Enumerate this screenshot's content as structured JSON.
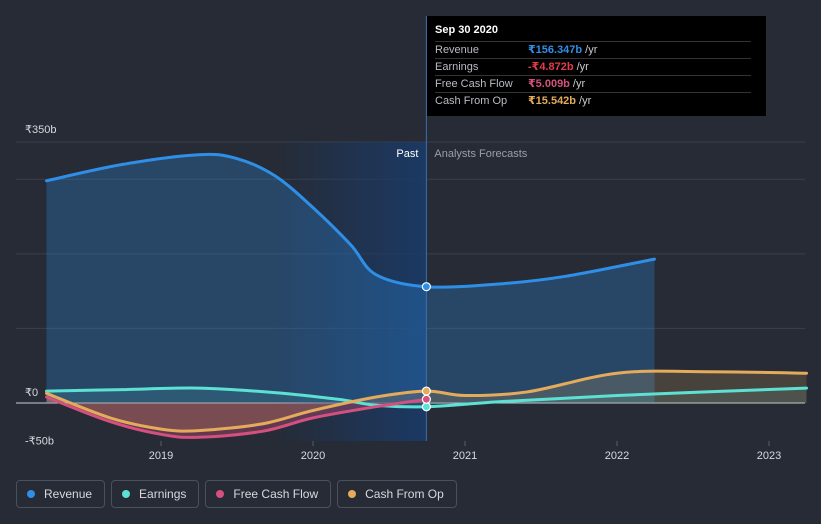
{
  "chart_data": {
    "type": "line",
    "x_ticks": [
      "2019",
      "2020",
      "2021",
      "2022",
      "2023"
    ],
    "y_ticks": [
      "₹350b",
      "₹0",
      "-₹50b"
    ],
    "ylim": [
      -50,
      350
    ],
    "regions": {
      "past_label": "Past",
      "forecast_label": "Analysts Forecasts",
      "divider_date": "2020-09-30"
    },
    "series": [
      {
        "name": "Revenue",
        "color": "#2f8fe6",
        "points": [
          [
            "2018-04-01",
            298
          ],
          [
            "2018-10-01",
            320
          ],
          [
            "2019-04-01",
            333
          ],
          [
            "2019-07-01",
            328
          ],
          [
            "2019-10-01",
            305
          ],
          [
            "2020-01-01",
            262
          ],
          [
            "2020-04-01",
            212
          ],
          [
            "2020-06-01",
            172
          ],
          [
            "2020-09-30",
            156
          ],
          [
            "2021-04-01",
            160
          ],
          [
            "2021-09-01",
            170
          ],
          [
            "2022-04-01",
            193
          ]
        ]
      },
      {
        "name": "Earnings",
        "color": "#5ce1d3",
        "points": [
          [
            "2018-04-01",
            16
          ],
          [
            "2018-10-01",
            18
          ],
          [
            "2019-04-01",
            20
          ],
          [
            "2019-10-01",
            14
          ],
          [
            "2020-03-01",
            5
          ],
          [
            "2020-06-01",
            -3
          ],
          [
            "2020-09-30",
            -5
          ],
          [
            "2021-04-01",
            2
          ],
          [
            "2022-01-01",
            10
          ],
          [
            "2023-04-01",
            20
          ]
        ]
      },
      {
        "name": "Free Cash Flow",
        "color": "#d4507f",
        "points": [
          [
            "2018-04-01",
            8
          ],
          [
            "2018-09-01",
            -25
          ],
          [
            "2019-01-01",
            -42
          ],
          [
            "2019-04-01",
            -46
          ],
          [
            "2019-09-01",
            -38
          ],
          [
            "2020-01-01",
            -20
          ],
          [
            "2020-06-01",
            -5
          ],
          [
            "2020-09-30",
            5
          ]
        ]
      },
      {
        "name": "Cash From Op",
        "color": "#e5ab5c",
        "points": [
          [
            "2018-04-01",
            13
          ],
          [
            "2018-09-01",
            -20
          ],
          [
            "2019-01-01",
            -35
          ],
          [
            "2019-04-01",
            -37
          ],
          [
            "2019-09-01",
            -28
          ],
          [
            "2020-01-01",
            -10
          ],
          [
            "2020-06-01",
            8
          ],
          [
            "2020-09-30",
            16
          ],
          [
            "2021-01-01",
            10
          ],
          [
            "2021-06-01",
            15
          ],
          [
            "2022-01-01",
            40
          ],
          [
            "2022-08-01",
            42
          ],
          [
            "2023-04-01",
            40
          ]
        ]
      }
    ],
    "hover": {
      "date": "2020-09-30",
      "markers": [
        "Revenue",
        "Earnings",
        "Free Cash Flow",
        "Cash From Op"
      ]
    }
  },
  "tooltip": {
    "date": "Sep 30 2020",
    "rows": [
      {
        "label": "Revenue",
        "value": "₹156.347b",
        "unit": "/yr",
        "color": "#2f8fe6"
      },
      {
        "label": "Earnings",
        "value": "-₹4.872b",
        "unit": "/yr",
        "color": "#e23c4a"
      },
      {
        "label": "Free Cash Flow",
        "value": "₹5.009b",
        "unit": "/yr",
        "color": "#d4507f"
      },
      {
        "label": "Cash From Op",
        "value": "₹15.542b",
        "unit": "/yr",
        "color": "#e5ab5c"
      }
    ]
  },
  "legend": [
    {
      "label": "Revenue",
      "color": "#2f8fe6"
    },
    {
      "label": "Earnings",
      "color": "#5ce1d3"
    },
    {
      "label": "Free Cash Flow",
      "color": "#d4507f"
    },
    {
      "label": "Cash From Op",
      "color": "#e5ab5c"
    }
  ]
}
